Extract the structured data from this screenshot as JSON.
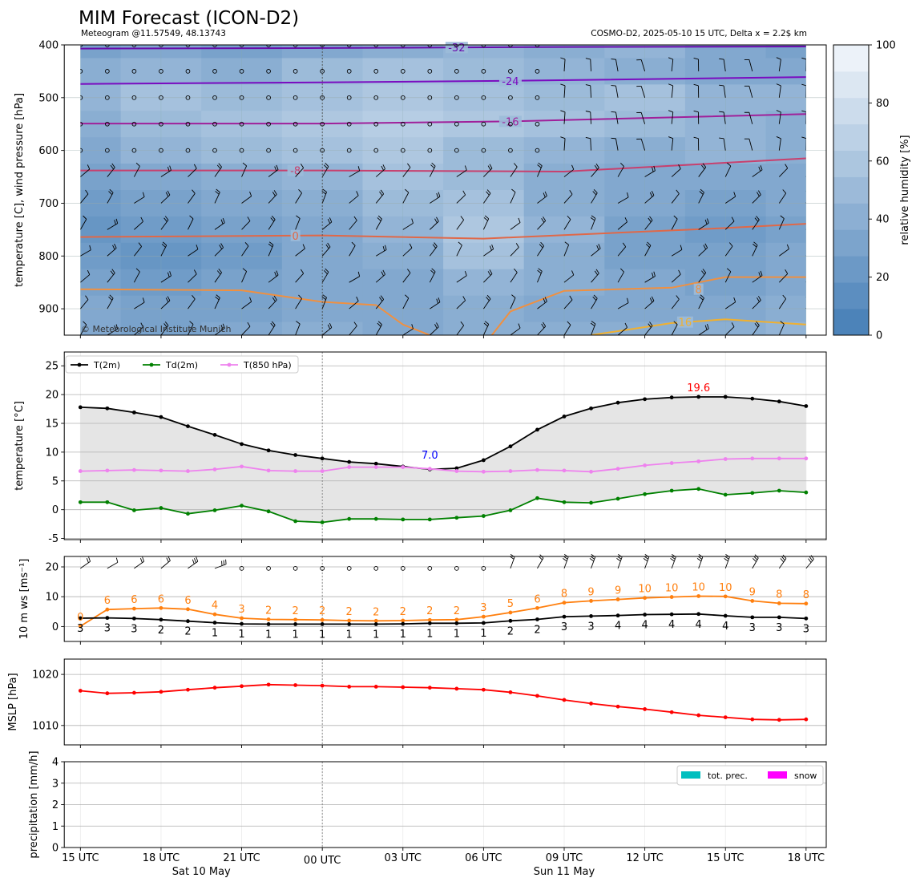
{
  "header": {
    "title": "MIM Forecast (ICON-D2)",
    "subtitle_left": "Meteogram @11.57549, 48.13743",
    "subtitle_right": "COSMO-D2, 2025-05-10 15 UTC, Delta x = 2.2$ km"
  },
  "copyright": "© Meteorological Institute Munich",
  "colors": {
    "t2m": "#000000",
    "td2m": "#008000",
    "t850": "#ee82ee",
    "wind_speed": "#000000",
    "gust": "#ff7f0e",
    "mslp": "#ff0000",
    "precip": "#00bfbf",
    "snow": "#ff00ff",
    "fill": "#e5e5e5",
    "min_label": "#0000ff",
    "max_label": "#ff0000"
  },
  "x_axis": {
    "hours": [
      0,
      3,
      6,
      9,
      12,
      15,
      18,
      21,
      24,
      27
    ],
    "tick_labels": [
      "15 UTC",
      "18 UTC",
      "21 UTC",
      "00 UTC",
      "03 UTC",
      "06 UTC",
      "09 UTC",
      "12 UTC",
      "15 UTC",
      "18 UTC"
    ],
    "date_labels": [
      {
        "at": 4.5,
        "text": "Sat 10 May"
      },
      {
        "at": 18,
        "text": "Sun 11 May"
      }
    ],
    "range": [
      -0.6,
      27.75
    ],
    "midnight": 9
  },
  "chart_data": [
    {
      "type": "heatmap",
      "panel": "upper-air",
      "ylabel": "temperature [C], wind pressure [hPa]",
      "ylim": [
        950,
        400
      ],
      "yticks": [
        400,
        500,
        600,
        700,
        800,
        900
      ],
      "colorbar": {
        "label": "relative humidity [%]",
        "ticks": [
          0,
          20,
          40,
          60,
          80,
          100
        ]
      },
      "rh_levels": [
        400,
        450,
        500,
        550,
        600,
        650,
        700,
        750,
        800,
        850,
        900,
        950
      ],
      "rh_times": [
        0,
        3,
        6,
        9,
        12,
        15,
        18,
        21,
        24,
        27
      ],
      "rh_values": [
        [
          30,
          35,
          30,
          35,
          40,
          45,
          40,
          45,
          35,
          30
        ],
        [
          40,
          45,
          40,
          50,
          55,
          50,
          45,
          40,
          35,
          35
        ],
        [
          45,
          55,
          50,
          55,
          60,
          55,
          50,
          55,
          45,
          45
        ],
        [
          40,
          50,
          55,
          60,
          65,
          60,
          55,
          50,
          45,
          40
        ],
        [
          35,
          45,
          50,
          55,
          60,
          50,
          45,
          40,
          45,
          40
        ],
        [
          30,
          35,
          40,
          45,
          55,
          50,
          40,
          35,
          35,
          35
        ],
        [
          25,
          30,
          35,
          40,
          50,
          55,
          40,
          35,
          30,
          35
        ],
        [
          20,
          25,
          30,
          35,
          45,
          60,
          45,
          30,
          25,
          30
        ],
        [
          25,
          20,
          25,
          35,
          40,
          55,
          40,
          30,
          30,
          35
        ],
        [
          30,
          25,
          30,
          35,
          35,
          45,
          40,
          35,
          30,
          35
        ],
        [
          35,
          30,
          30,
          35,
          35,
          40,
          35,
          35,
          35,
          40
        ],
        [
          35,
          30,
          35,
          40,
          35,
          40,
          40,
          40,
          40,
          45
        ]
      ],
      "isotherms": [
        {
          "label": "-32",
          "label_at": 14,
          "color": "#6a0dad",
          "points": [
            [
              0,
              407
            ],
            [
              9,
              406
            ],
            [
              18,
              404
            ],
            [
              27,
              403
            ]
          ]
        },
        {
          "label": "-24",
          "label_at": 16,
          "color": "#7a0cc0",
          "points": [
            [
              0,
              474
            ],
            [
              9,
              471
            ],
            [
              16,
              468
            ],
            [
              27,
              461
            ]
          ]
        },
        {
          "label": "-16",
          "label_at": 16,
          "color": "#a0209a",
          "points": [
            [
              0,
              549
            ],
            [
              9,
              549
            ],
            [
              16,
              545
            ],
            [
              27,
              531
            ]
          ]
        },
        {
          "label": "-8",
          "label_at": 8,
          "color": "#c8406e",
          "points": [
            [
              0,
              638
            ],
            [
              9,
              638
            ],
            [
              18,
              640
            ],
            [
              27,
              615
            ]
          ]
        },
        {
          "label": "0",
          "label_at": 8,
          "color": "#e06848",
          "points": [
            [
              0,
              764
            ],
            [
              9,
              761
            ],
            [
              15,
              767
            ],
            [
              24,
              747
            ],
            [
              27,
              739
            ]
          ]
        },
        {
          "label": "8",
          "label_at": 23,
          "color": "#f09040",
          "points": [
            [
              0,
              863
            ],
            [
              6,
              865
            ],
            [
              9,
              887
            ],
            [
              11,
              893
            ],
            [
              12,
              930
            ],
            [
              14,
              970
            ]
          ]
        },
        {
          "label": "8",
          "label_at": 23,
          "color": "#f09040",
          "points": [
            [
              15,
              970
            ],
            [
              16,
              905
            ],
            [
              18,
              866
            ],
            [
              22,
              860
            ],
            [
              24,
              840
            ],
            [
              27,
              840
            ]
          ]
        },
        {
          "label": "16",
          "label_at": 22.5,
          "color": "#f0b030",
          "points": [
            [
              19,
              950
            ],
            [
              22,
              927
            ],
            [
              24,
              920
            ],
            [
              27,
              930
            ]
          ]
        }
      ]
    },
    {
      "type": "line",
      "panel": "temperature",
      "ylabel": "temperature [$^\\circ$C]",
      "ylim": [
        -5.2,
        27.4
      ],
      "yticks": [
        -5,
        0,
        5,
        10,
        15,
        20,
        25
      ],
      "x": [
        0,
        1,
        2,
        3,
        4,
        5,
        6,
        7,
        8,
        9,
        10,
        11,
        12,
        13,
        14,
        15,
        16,
        17,
        18,
        19,
        20,
        21,
        22,
        23,
        24,
        25,
        26,
        27
      ],
      "series": [
        {
          "name": "T(2m)",
          "values": [
            17.8,
            17.6,
            16.9,
            16.1,
            14.5,
            13.0,
            11.4,
            10.3,
            9.5,
            8.9,
            8.3,
            8.0,
            7.5,
            7.0,
            7.2,
            8.6,
            11.0,
            13.9,
            16.2,
            17.6,
            18.6,
            19.2,
            19.5,
            19.6,
            19.6,
            19.3,
            18.8,
            18.0
          ]
        },
        {
          "name": "Td(2m)",
          "values": [
            1.3,
            1.3,
            -0.1,
            0.3,
            -0.7,
            -0.1,
            0.7,
            -0.3,
            -2.0,
            -2.2,
            -1.6,
            -1.6,
            -1.7,
            -1.7,
            -1.4,
            -1.1,
            -0.1,
            2.0,
            1.3,
            1.2,
            1.9,
            2.7,
            3.3,
            3.6,
            2.6,
            2.9,
            3.3,
            3.0
          ]
        },
        {
          "name": "T(850 hPa)",
          "values": [
            6.7,
            6.8,
            6.9,
            6.8,
            6.7,
            7.0,
            7.5,
            6.8,
            6.7,
            6.7,
            7.4,
            7.4,
            7.4,
            7.1,
            6.7,
            6.6,
            6.7,
            6.9,
            6.8,
            6.6,
            7.1,
            7.7,
            8.1,
            8.4,
            8.8,
            8.9,
            8.9,
            8.9
          ]
        }
      ],
      "annotations": [
        {
          "text": "7.0",
          "x": 13,
          "y": 9.4,
          "kind": "min"
        },
        {
          "text": "19.6",
          "x": 23,
          "y": 21.1,
          "kind": "max"
        }
      ],
      "legend": "top-left"
    },
    {
      "type": "line",
      "panel": "wind",
      "ylabel": "10 m ws [ms$^{-1}$]",
      "ylim": [
        -5,
        23.5
      ],
      "yticks": [
        0,
        10,
        20
      ],
      "x": [
        0,
        1,
        2,
        3,
        4,
        5,
        6,
        7,
        8,
        9,
        10,
        11,
        12,
        13,
        14,
        15,
        16,
        17,
        18,
        19,
        20,
        21,
        22,
        23,
        24,
        25,
        26,
        27
      ],
      "series": [
        {
          "name": "wind speed",
          "values": [
            2.8,
            2.9,
            2.7,
            2.3,
            1.8,
            1.3,
            0.9,
            0.8,
            0.8,
            0.8,
            0.8,
            0.8,
            0.9,
            1.1,
            1.1,
            1.2,
            1.9,
            2.4,
            3.3,
            3.5,
            3.7,
            4.0,
            4.1,
            4.2,
            3.6,
            3.1,
            3.1,
            2.7
          ]
        },
        {
          "name": "gust",
          "values": [
            0.1,
            5.7,
            6.0,
            6.2,
            5.8,
            4.1,
            2.8,
            2.4,
            2.3,
            2.2,
            2.0,
            1.9,
            2.0,
            2.2,
            2.3,
            3.3,
            4.7,
            6.2,
            8.0,
            8.6,
            9.1,
            9.6,
            9.9,
            10.2,
            10.1,
            8.6,
            7.8,
            7.7
          ]
        }
      ],
      "speed_labels": [
        "3",
        "3",
        "3",
        "2",
        "2",
        "1",
        "1",
        "1",
        "1",
        "1",
        "1",
        "1",
        "1",
        "1",
        "1",
        "1",
        "2",
        "2",
        "3",
        "3",
        "4",
        "4",
        "4",
        "4",
        "4",
        "3",
        "3",
        "3"
      ],
      "gust_labels": [
        "0",
        "6",
        "6",
        "6",
        "6",
        "4",
        "3",
        "2",
        "2",
        "2",
        "2",
        "2",
        "2",
        "2",
        "2",
        "3",
        "5",
        "6",
        "8",
        "9",
        "9",
        "10",
        "10",
        "10",
        "10",
        "9",
        "8",
        "8"
      ],
      "barbs": [
        [
          35,
          2
        ],
        [
          30,
          1
        ],
        [
          35,
          2
        ],
        [
          40,
          2
        ],
        [
          35,
          3
        ],
        [
          20,
          3
        ],
        [
          0,
          0
        ],
        [
          0,
          0
        ],
        [
          0,
          0
        ],
        [
          0,
          0
        ],
        [
          0,
          0
        ],
        [
          0,
          0
        ],
        [
          0,
          0
        ],
        [
          0,
          0
        ],
        [
          0,
          0
        ],
        [
          0,
          0
        ],
        [
          70,
          2
        ],
        [
          60,
          2
        ],
        [
          70,
          3
        ],
        [
          70,
          3
        ],
        [
          70,
          3
        ],
        [
          70,
          3
        ],
        [
          70,
          3
        ],
        [
          70,
          3
        ],
        [
          70,
          3
        ],
        [
          60,
          3
        ],
        [
          55,
          3
        ],
        [
          50,
          3
        ]
      ]
    },
    {
      "type": "line",
      "panel": "pressure",
      "ylabel": "MSLP [hPa]",
      "ylim": [
        1006.2,
        1023
      ],
      "yticks": [
        1010,
        1020
      ],
      "x": [
        0,
        1,
        2,
        3,
        4,
        5,
        6,
        7,
        8,
        9,
        10,
        11,
        12,
        13,
        14,
        15,
        16,
        17,
        18,
        19,
        20,
        21,
        22,
        23,
        24,
        25,
        26,
        27
      ],
      "series": [
        {
          "name": "MSLP",
          "values": [
            1016.8,
            1016.3,
            1016.4,
            1016.6,
            1017.0,
            1017.4,
            1017.7,
            1018.0,
            1017.9,
            1017.8,
            1017.6,
            1017.6,
            1017.5,
            1017.4,
            1017.2,
            1017.0,
            1016.5,
            1015.8,
            1015.0,
            1014.3,
            1013.7,
            1013.2,
            1012.6,
            1012.0,
            1011.6,
            1011.2,
            1011.1,
            1011.2
          ]
        }
      ]
    },
    {
      "type": "bar",
      "panel": "precipitation",
      "ylabel": "precipitation [mm/h]",
      "ylim": [
        0,
        4
      ],
      "yticks": [
        0,
        1,
        2,
        3,
        4
      ],
      "series": [
        {
          "name": "tot. prec.",
          "values": [
            0,
            0,
            0,
            0,
            0,
            0,
            0,
            0,
            0,
            0,
            0,
            0,
            0,
            0,
            0,
            0,
            0,
            0,
            0,
            0,
            0,
            0,
            0,
            0,
            0,
            0,
            0,
            0
          ]
        },
        {
          "name": "snow",
          "values": [
            0,
            0,
            0,
            0,
            0,
            0,
            0,
            0,
            0,
            0,
            0,
            0,
            0,
            0,
            0,
            0,
            0,
            0,
            0,
            0,
            0,
            0,
            0,
            0,
            0,
            0,
            0,
            0
          ]
        }
      ],
      "legend": "top-right"
    }
  ]
}
